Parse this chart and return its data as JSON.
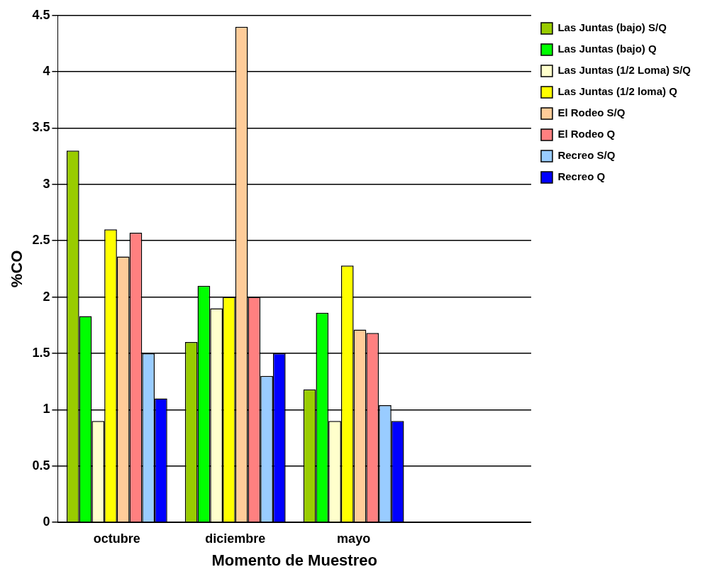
{
  "chart_data": {
    "type": "bar",
    "xlabel": "Momento de Muestreo",
    "ylabel": "%CO",
    "categories": [
      "octubre",
      "diciembre",
      "mayo",
      null
    ],
    "series": [
      {
        "name": "Las Juntas (bajo) S/Q",
        "color": "#99cc00",
        "values": [
          3.3,
          1.6,
          1.18,
          null
        ]
      },
      {
        "name": "Las Juntas (bajo) Q",
        "color": "#00ff00",
        "values": [
          1.83,
          2.1,
          1.86,
          null
        ]
      },
      {
        "name": "Las Juntas (1/2 Loma) S/Q",
        "color": "#ffffcc",
        "values": [
          0.9,
          1.9,
          0.9,
          null
        ]
      },
      {
        "name": "Las Juntas (1/2 loma) Q",
        "color": "#ffff00",
        "values": [
          2.6,
          2.0,
          2.28,
          null
        ]
      },
      {
        "name": "El Rodeo S/Q",
        "color": "#ffcc99",
        "values": [
          2.36,
          4.4,
          1.71,
          null
        ]
      },
      {
        "name": "El Rodeo Q",
        "color": "#ff8080",
        "values": [
          2.57,
          2.0,
          1.68,
          null
        ]
      },
      {
        "name": "Recreo S/Q",
        "color": "#99ccff",
        "values": [
          1.5,
          1.3,
          1.04,
          null
        ]
      },
      {
        "name": "Recreo Q",
        "color": "#0000ff",
        "values": [
          1.1,
          1.5,
          0.9,
          null
        ]
      }
    ],
    "ylim": [
      0,
      4.5
    ],
    "yticks": [
      0,
      0.5,
      1,
      1.5,
      2,
      2.5,
      3,
      3.5,
      4,
      4.5
    ],
    "grid": "y",
    "legend": "top right"
  }
}
